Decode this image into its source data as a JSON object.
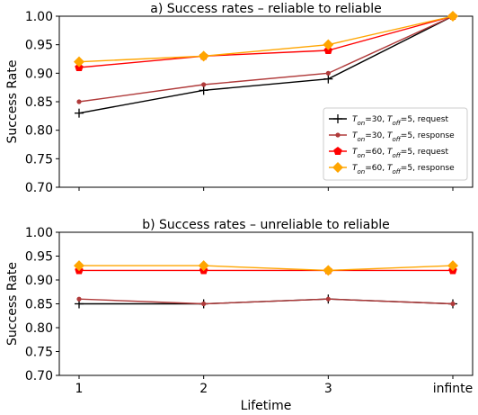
{
  "chart_data": [
    {
      "type": "line",
      "title": "a) Success rates – reliable to reliable",
      "xlabel": "",
      "ylabel": "Success Rate",
      "categories": [
        "1",
        "2",
        "3",
        "infinte"
      ],
      "show_x_ticklabels": false,
      "ylim": [
        0.7,
        1.0
      ],
      "yticks": [
        "0.70",
        "0.75",
        "0.80",
        "0.85",
        "0.90",
        "0.95",
        "1.00"
      ],
      "grid": false,
      "legend_position": "lower-right",
      "series": [
        {
          "key": "s1",
          "name_parts": [
            "T",
            "on",
            "=30, ",
            "T",
            "off",
            "=5, request"
          ],
          "color": "#000000",
          "marker": "plus",
          "values": [
            0.83,
            0.87,
            0.89,
            1.0
          ]
        },
        {
          "key": "s2",
          "name_parts": [
            "T",
            "on",
            "=30, ",
            "T",
            "off",
            "=5, response"
          ],
          "color": "#b03a3a",
          "marker": "dot",
          "values": [
            0.85,
            0.88,
            0.9,
            1.0
          ]
        },
        {
          "key": "s3",
          "name_parts": [
            "T",
            "on",
            "=60, ",
            "T",
            "off",
            "=5, request"
          ],
          "color": "#ff0000",
          "marker": "pentagon",
          "values": [
            0.91,
            0.93,
            0.94,
            1.0
          ]
        },
        {
          "key": "s4",
          "name_parts": [
            "T",
            "on",
            "=60, ",
            "T",
            "off",
            "=5, response"
          ],
          "color": "#ffa500",
          "marker": "diamond",
          "values": [
            0.92,
            0.93,
            0.95,
            1.0
          ]
        }
      ]
    },
    {
      "type": "line",
      "title": "b) Success rates – unreliable to reliable",
      "xlabel": "Lifetime",
      "ylabel": "Success Rate",
      "categories": [
        "1",
        "2",
        "3",
        "infinte"
      ],
      "show_x_ticklabels": true,
      "ylim": [
        0.7,
        1.0
      ],
      "yticks": [
        "0.70",
        "0.75",
        "0.80",
        "0.85",
        "0.90",
        "0.95",
        "1.00"
      ],
      "grid": false,
      "legend_position": "",
      "series": [
        {
          "key": "s1",
          "color": "#000000",
          "marker": "plus",
          "values": [
            0.85,
            0.85,
            0.86,
            0.85
          ]
        },
        {
          "key": "s2",
          "color": "#b03a3a",
          "marker": "dot",
          "values": [
            0.86,
            0.85,
            0.86,
            0.85
          ]
        },
        {
          "key": "s3",
          "color": "#ff0000",
          "marker": "pentagon",
          "values": [
            0.92,
            0.92,
            0.92,
            0.92
          ]
        },
        {
          "key": "s4",
          "color": "#ffa500",
          "marker": "diamond",
          "values": [
            0.93,
            0.93,
            0.92,
            0.93
          ]
        }
      ]
    }
  ]
}
